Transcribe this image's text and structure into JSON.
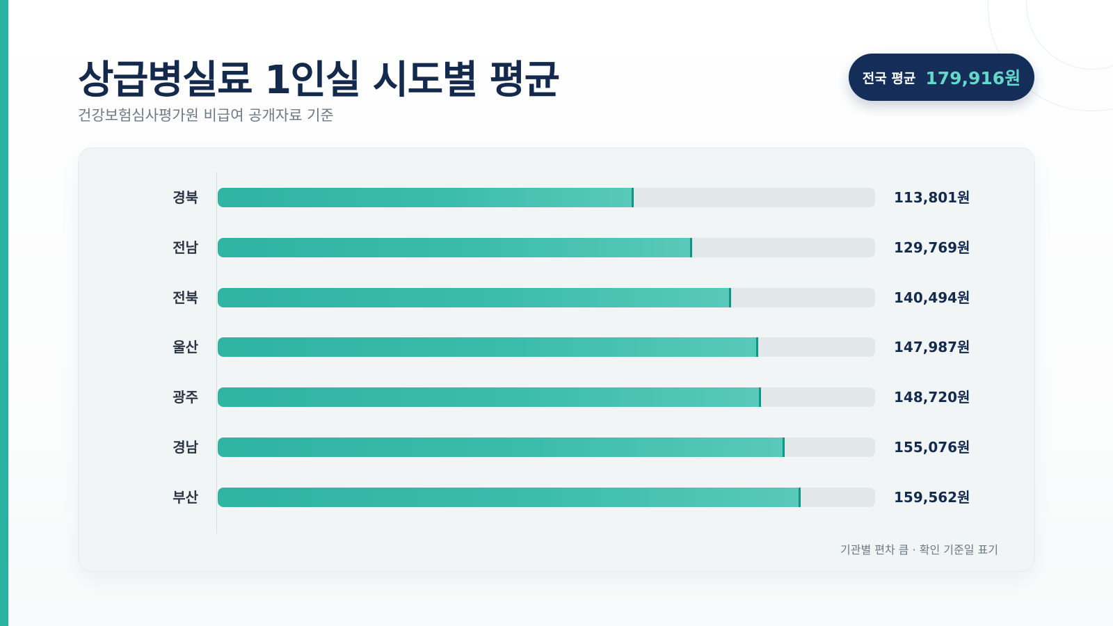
{
  "header": {
    "title": "상급병실료 1인실 시도별 평균",
    "subtitle": "건강보험심사평가원 비급여 공개자료 기준"
  },
  "badge": {
    "label": "전국 평균",
    "value": "179,916원"
  },
  "footnote": "기관별 편차 큼 · 확인 기준일 표기",
  "colors": {
    "accent": "#2ab3a3",
    "navy": "#142e59",
    "bar": "#3bbcab",
    "track": "#e2e8ea"
  },
  "chart_data": {
    "type": "bar",
    "orientation": "horizontal",
    "categories": [
      "경북",
      "전남",
      "전북",
      "울산",
      "광주",
      "경남",
      "부산"
    ],
    "values": [
      113801,
      129769,
      140494,
      147987,
      148720,
      155076,
      159562
    ],
    "value_labels": [
      "113,801원",
      "129,769원",
      "140,494원",
      "147,987원",
      "148,720원",
      "155,076원",
      "159,562원"
    ],
    "xlim": [
      0,
      179916
    ],
    "grid": false,
    "legend": "none"
  }
}
